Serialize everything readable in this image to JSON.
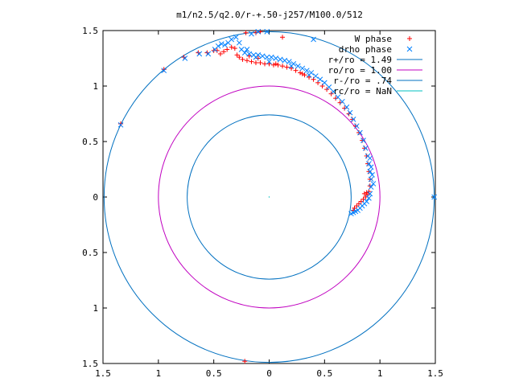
{
  "chart_data": {
    "type": "scatter",
    "title": "m1/n2.5/q2.0/r-+.50-j257/M100.0/512",
    "xlim": [
      -1.5,
      1.5
    ],
    "ylim": [
      -1.5,
      1.5
    ],
    "x_tick_values": [
      -1.5,
      -1,
      -0.5,
      0,
      0.5,
      1,
      1.5
    ],
    "x_tick_labels": [
      "1.5",
      "1",
      "0.5",
      "0",
      "0.5",
      "1",
      "1.5"
    ],
    "y_tick_values": [
      1.5,
      1,
      0.5,
      0,
      -0.5,
      -1,
      -1.5
    ],
    "y_tick_labels": [
      "1.5",
      "1",
      "0.5",
      "0",
      "0.5",
      "1",
      "1.5"
    ],
    "legend_position": "top-right",
    "legend": [
      {
        "label": "W phase",
        "kind": "point",
        "marker": "+",
        "color": "#ff0000"
      },
      {
        "label": "drho phase",
        "kind": "point",
        "marker": "x",
        "color": "#0080ff"
      },
      {
        "label": "r+/ro = 1.49",
        "kind": "circle",
        "radius": 1.49,
        "color": "#0070c0"
      },
      {
        "label": "ro/ro = 1.00",
        "kind": "circle",
        "radius": 1.0,
        "color": "#c000c0"
      },
      {
        "label": "r-/ro = .74",
        "kind": "circle",
        "radius": 0.74,
        "color": "#0070c0"
      },
      {
        "label": "rc/ro = NaN",
        "kind": "circle",
        "radius": null,
        "color": "#00c0c0"
      }
    ],
    "series": [
      {
        "name": "W phase",
        "marker": "+",
        "color": "#ff0000",
        "points": [
          [
            -1.34,
            0.66
          ],
          [
            -0.95,
            1.15
          ],
          [
            -0.77,
            1.26
          ],
          [
            -0.64,
            1.3
          ],
          [
            -0.56,
            1.3
          ],
          [
            -0.5,
            1.32
          ],
          [
            -0.47,
            1.32
          ],
          [
            -0.44,
            1.29
          ],
          [
            -0.41,
            1.31
          ],
          [
            -0.38,
            1.33
          ],
          [
            -0.34,
            1.35
          ],
          [
            -0.31,
            1.34
          ],
          [
            -0.29,
            1.28
          ],
          [
            -0.27,
            1.26
          ],
          [
            -0.24,
            1.24
          ],
          [
            -0.2,
            1.23
          ],
          [
            -0.16,
            1.22
          ],
          [
            -0.12,
            1.21
          ],
          [
            -0.08,
            1.21
          ],
          [
            -0.04,
            1.2
          ],
          [
            0.0,
            1.2
          ],
          [
            0.04,
            1.19
          ],
          [
            0.08,
            1.19
          ],
          [
            0.12,
            1.18
          ],
          [
            0.16,
            1.17
          ],
          [
            0.2,
            1.16
          ],
          [
            0.24,
            1.14
          ],
          [
            0.28,
            1.12
          ],
          [
            0.32,
            1.1
          ],
          [
            0.36,
            1.08
          ],
          [
            0.4,
            1.06
          ],
          [
            0.44,
            1.03
          ],
          [
            0.48,
            1.0
          ],
          [
            0.52,
            0.97
          ],
          [
            0.56,
            0.93
          ],
          [
            0.6,
            0.89
          ],
          [
            0.64,
            0.85
          ],
          [
            0.68,
            0.8
          ],
          [
            0.72,
            0.75
          ],
          [
            0.75,
            0.7
          ],
          [
            0.78,
            0.64
          ],
          [
            0.81,
            0.58
          ],
          [
            0.84,
            0.51
          ],
          [
            0.86,
            0.44
          ],
          [
            0.88,
            0.37
          ],
          [
            0.89,
            0.3
          ],
          [
            0.9,
            0.23
          ],
          [
            0.91,
            0.16
          ],
          [
            0.91,
            0.1
          ],
          [
            0.9,
            0.05
          ],
          [
            0.89,
            0.02
          ],
          [
            0.87,
            0.0
          ],
          [
            0.85,
            -0.02
          ],
          [
            0.83,
            -0.04
          ],
          [
            0.81,
            -0.06
          ],
          [
            0.79,
            -0.08
          ],
          [
            0.77,
            -0.1
          ],
          [
            0.76,
            -0.12
          ],
          [
            0.88,
            0.04
          ],
          [
            0.86,
            0.03
          ],
          [
            -0.21,
            1.48
          ],
          [
            -0.12,
            1.48
          ],
          [
            -0.08,
            1.49
          ],
          [
            0.12,
            1.44
          ],
          [
            -0.22,
            -1.48
          ],
          [
            0.06,
            1.2
          ],
          [
            -0.1,
            1.25
          ],
          [
            -0.18,
            1.27
          ],
          [
            0.3,
            1.11
          ]
        ]
      },
      {
        "name": "drho phase",
        "marker": "x",
        "color": "#0080ff",
        "points": [
          [
            -1.34,
            0.65
          ],
          [
            -0.95,
            1.14
          ],
          [
            -0.76,
            1.25
          ],
          [
            -0.63,
            1.29
          ],
          [
            -0.55,
            1.29
          ],
          [
            -0.49,
            1.33
          ],
          [
            -0.46,
            1.36
          ],
          [
            -0.43,
            1.38
          ],
          [
            -0.4,
            1.37
          ],
          [
            -0.37,
            1.39
          ],
          [
            -0.34,
            1.42
          ],
          [
            -0.3,
            1.44
          ],
          [
            -0.27,
            1.39
          ],
          [
            -0.25,
            1.33
          ],
          [
            -0.22,
            1.3
          ],
          [
            -0.18,
            1.29
          ],
          [
            -0.14,
            1.28
          ],
          [
            -0.1,
            1.28
          ],
          [
            -0.06,
            1.27
          ],
          [
            -0.02,
            1.26
          ],
          [
            0.02,
            1.26
          ],
          [
            0.06,
            1.25
          ],
          [
            0.1,
            1.24
          ],
          [
            0.14,
            1.23
          ],
          [
            0.18,
            1.22
          ],
          [
            0.22,
            1.2
          ],
          [
            0.26,
            1.18
          ],
          [
            0.3,
            1.16
          ],
          [
            0.34,
            1.14
          ],
          [
            0.38,
            1.12
          ],
          [
            0.42,
            1.09
          ],
          [
            0.46,
            1.06
          ],
          [
            0.5,
            1.03
          ],
          [
            0.54,
            0.99
          ],
          [
            0.58,
            0.95
          ],
          [
            0.62,
            0.9
          ],
          [
            0.66,
            0.86
          ],
          [
            0.7,
            0.81
          ],
          [
            0.73,
            0.76
          ],
          [
            0.76,
            0.7
          ],
          [
            0.79,
            0.64
          ],
          [
            0.82,
            0.58
          ],
          [
            0.85,
            0.51
          ],
          [
            0.87,
            0.44
          ],
          [
            0.89,
            0.37
          ],
          [
            0.9,
            0.3
          ],
          [
            0.91,
            0.23
          ],
          [
            0.92,
            0.16
          ],
          [
            0.92,
            0.09
          ],
          [
            0.91,
            0.03
          ],
          [
            0.9,
            -0.01
          ],
          [
            0.88,
            -0.04
          ],
          [
            0.86,
            -0.06
          ],
          [
            0.84,
            -0.08
          ],
          [
            0.82,
            -0.1
          ],
          [
            0.8,
            -0.12
          ],
          [
            0.78,
            -0.13
          ],
          [
            0.76,
            -0.14
          ],
          [
            0.74,
            -0.15
          ],
          [
            0.94,
            0.12
          ],
          [
            0.93,
            0.2
          ],
          [
            0.92,
            0.27
          ],
          [
            0.91,
            0.35
          ],
          [
            -0.16,
            1.47
          ],
          [
            -0.1,
            1.49
          ],
          [
            -0.02,
            1.49
          ],
          [
            0.4,
            1.42
          ],
          [
            1.49,
            0.0
          ],
          [
            -0.2,
            1.33
          ],
          [
            -0.12,
            1.26
          ],
          [
            0.0,
            1.22
          ],
          [
            0.2,
            1.18
          ],
          [
            0.36,
            1.1
          ]
        ]
      }
    ]
  }
}
